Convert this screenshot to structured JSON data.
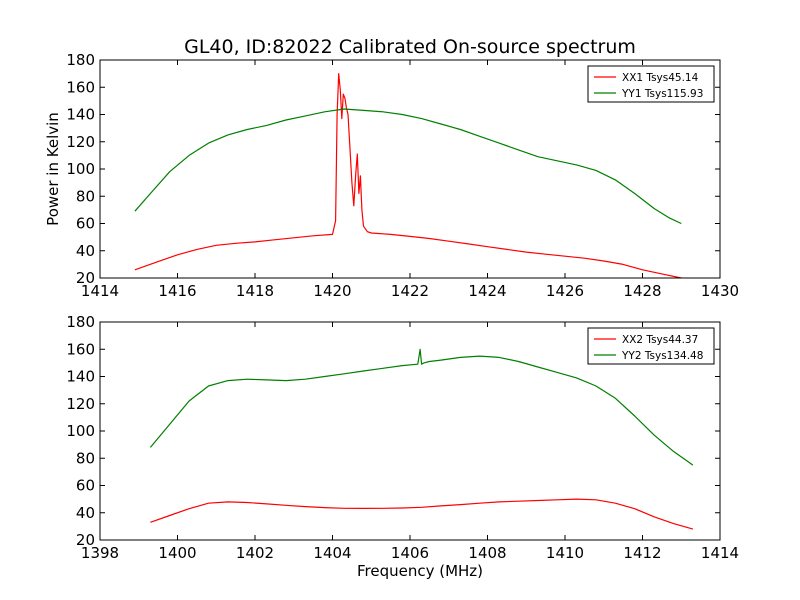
{
  "figure": {
    "title": "GL40, ID:82022 Calibrated On-source spectrum"
  },
  "chart_data": [
    {
      "type": "line",
      "title": "GL40, ID:82022 Calibrated On-source spectrum",
      "xlabel": "",
      "ylabel": "Power in Kelvin",
      "xlim": [
        1414,
        1430
      ],
      "ylim": [
        20,
        180
      ],
      "xticks": [
        1414,
        1416,
        1418,
        1420,
        1422,
        1424,
        1426,
        1428,
        1430
      ],
      "yticks": [
        20,
        40,
        60,
        80,
        100,
        120,
        140,
        160,
        180
      ],
      "grid": false,
      "legend": "top-right",
      "series": [
        {
          "name": "XX1 Tsys45.14",
          "color": "#ff0000",
          "x": [
            1414.9,
            1415.5,
            1416,
            1416.5,
            1417,
            1417.5,
            1418,
            1418.5,
            1419,
            1419.5,
            1420,
            1420.08,
            1420.12,
            1420.16,
            1420.2,
            1420.24,
            1420.28,
            1420.32,
            1420.36,
            1420.4,
            1420.44,
            1420.5,
            1420.55,
            1420.6,
            1420.64,
            1420.68,
            1420.72,
            1420.76,
            1420.8,
            1420.9,
            1421,
            1421.5,
            1422,
            1422.5,
            1423,
            1423.5,
            1424,
            1424.5,
            1425,
            1425.5,
            1426,
            1426.5,
            1427,
            1427.5,
            1428,
            1428.5,
            1429
          ],
          "y": [
            26,
            32,
            37,
            41,
            44,
            45.5,
            46.5,
            48,
            49.5,
            51,
            52,
            62,
            140,
            170,
            158,
            137,
            155,
            152,
            145,
            140,
            120,
            90,
            73,
            96,
            111,
            82,
            95,
            70,
            58,
            54,
            53,
            52,
            50.5,
            49,
            47,
            45,
            43,
            41,
            39,
            37.5,
            36,
            34.5,
            32.5,
            30,
            26,
            23,
            20
          ]
        },
        {
          "name": "YY1 Tsys115.93",
          "color": "#008000",
          "x": [
            1414.9,
            1415.3,
            1415.8,
            1416.3,
            1416.8,
            1417.3,
            1417.8,
            1418.3,
            1418.8,
            1419.3,
            1419.8,
            1420.3,
            1420.8,
            1421.3,
            1421.8,
            1422.3,
            1422.8,
            1423.3,
            1423.8,
            1424.3,
            1424.8,
            1425.3,
            1425.8,
            1426.3,
            1426.8,
            1427.3,
            1427.8,
            1428.3,
            1428.7,
            1429
          ],
          "y": [
            69,
            82,
            98,
            110,
            119,
            125,
            129,
            132,
            136,
            139,
            142,
            144,
            143,
            142,
            140,
            137,
            133,
            129,
            124,
            119,
            114,
            109,
            106,
            103,
            99,
            92,
            82,
            71,
            64,
            60
          ]
        }
      ]
    },
    {
      "type": "line",
      "title": "",
      "xlabel": "Frequency (MHz)",
      "ylabel": "",
      "xlim": [
        1398,
        1414
      ],
      "ylim": [
        20,
        180
      ],
      "xticks": [
        1398,
        1400,
        1402,
        1404,
        1406,
        1408,
        1410,
        1412,
        1414
      ],
      "yticks": [
        20,
        40,
        60,
        80,
        100,
        120,
        140,
        160,
        180
      ],
      "grid": false,
      "legend": "top-right",
      "series": [
        {
          "name": "XX2 Tsys44.37",
          "color": "#ff0000",
          "x": [
            1399.3,
            1399.8,
            1400.3,
            1400.8,
            1401.3,
            1401.8,
            1402.3,
            1402.8,
            1403.3,
            1403.8,
            1404.3,
            1404.8,
            1405.3,
            1405.8,
            1406.3,
            1406.8,
            1407.3,
            1407.8,
            1408.3,
            1408.8,
            1409.3,
            1409.8,
            1410.3,
            1410.8,
            1411.3,
            1411.8,
            1412.3,
            1412.8,
            1413.3
          ],
          "y": [
            33,
            38,
            43,
            47,
            48,
            47.5,
            46.5,
            45.5,
            44.5,
            43.8,
            43.3,
            43.2,
            43.3,
            43.5,
            44,
            45,
            46,
            47,
            48,
            48.5,
            49,
            49.5,
            50,
            49.5,
            47,
            43,
            37,
            32,
            28
          ]
        },
        {
          "name": "YY2 Tsys134.48",
          "color": "#008000",
          "x": [
            1399.3,
            1399.8,
            1400.3,
            1400.8,
            1401.3,
            1401.8,
            1402.3,
            1402.8,
            1403.3,
            1403.8,
            1404.3,
            1404.8,
            1405.3,
            1405.8,
            1406.2,
            1406.26,
            1406.3,
            1406.36,
            1406.5,
            1406.8,
            1407.3,
            1407.8,
            1408.3,
            1408.8,
            1409.3,
            1409.8,
            1410.3,
            1410.8,
            1411.3,
            1411.8,
            1412.3,
            1412.8,
            1413.3
          ],
          "y": [
            88,
            105,
            122,
            133,
            137,
            138,
            137.5,
            137,
            138,
            140,
            142,
            144,
            146,
            148,
            149,
            160,
            149,
            150,
            151,
            152,
            154,
            155,
            154,
            151,
            147,
            143,
            139,
            133,
            124,
            111,
            97,
            85,
            75
          ]
        }
      ]
    }
  ]
}
